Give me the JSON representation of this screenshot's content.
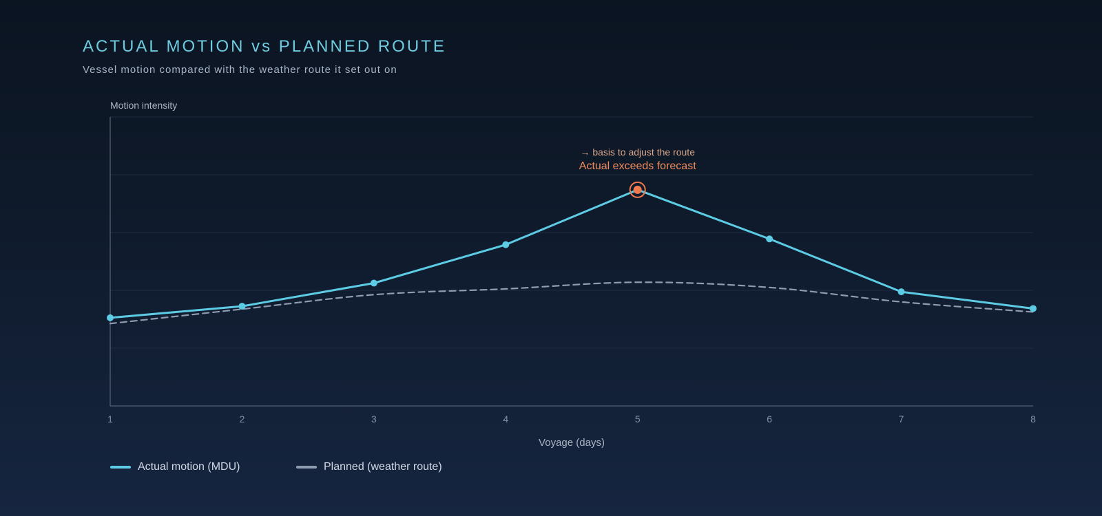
{
  "header": {
    "title": "ACTUAL MOTION vs PLANNED ROUTE",
    "subtitle": "Vessel motion compared with the weather route it set out on"
  },
  "chart_data": {
    "type": "line",
    "title": "ACTUAL MOTION vs PLANNED ROUTE",
    "subtitle": "Vessel motion compared with the weather route it set out on",
    "xlabel": "Voyage (days)",
    "ylabel": "Motion intensity",
    "x": [
      1,
      2,
      3,
      4,
      5,
      6,
      7,
      8
    ],
    "xlim": [
      1,
      8
    ],
    "ylim": [
      0,
      100
    ],
    "grid": true,
    "y_tick_labels_shown": false,
    "series": [
      {
        "name": "Actual motion (MDU)",
        "style": "solid",
        "color": "#5ccbe3",
        "values": [
          30.5,
          34.5,
          42.5,
          55.8,
          74.8,
          57.8,
          39.5,
          33.7
        ]
      },
      {
        "name": "Planned (weather route)",
        "style": "dashed",
        "color": "#8f9bb0",
        "values": [
          28.5,
          33.5,
          38.5,
          40.5,
          42.8,
          41.0,
          36.0,
          32.5
        ]
      }
    ],
    "annotation": {
      "x": 5,
      "y": 74.8,
      "text": "Actual exceeds forecast",
      "subtext": "→ basis to adjust the route",
      "color": "#f07a4e",
      "subtext_color": "#d6a58a"
    },
    "legend": {
      "placement": "bottom-left",
      "items": [
        "Actual motion (MDU)",
        "Planned (weather route)"
      ]
    },
    "colors": {
      "axis": "#4a586c",
      "grid": "#1f2d40",
      "tick": "#8591a3",
      "label": "#aab5c4",
      "highlight": "#f07a4e"
    }
  }
}
